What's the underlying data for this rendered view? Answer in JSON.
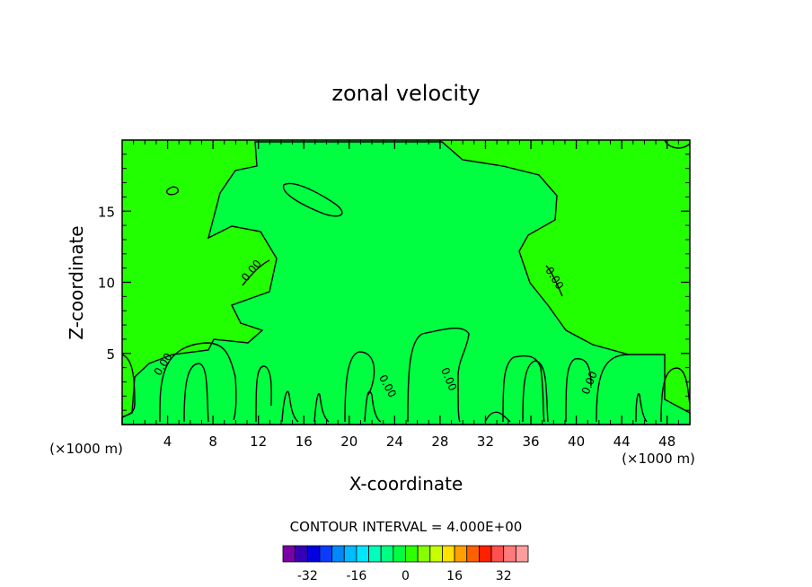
{
  "chart_data": {
    "type": "contour",
    "title": "zonal velocity",
    "xlabel": "X-coordinate",
    "ylabel": "Z-coordinate",
    "x_units": "(×1000 m)",
    "xlim": [
      0,
      50
    ],
    "ylim": [
      0,
      20
    ],
    "x_ticks": [
      4,
      8,
      12,
      16,
      20,
      24,
      28,
      32,
      36,
      40,
      44,
      48
    ],
    "y_ticks": [
      5,
      10,
      15
    ],
    "contour_label": "0.00",
    "contour_interval_text": "CONTOUR INTERVAL = 4.000E+00",
    "colorbar": {
      "tick_labels": [
        "-32",
        "-16",
        "0",
        "16",
        "32"
      ],
      "tick_values": [
        -32,
        -16,
        0,
        16,
        32
      ],
      "colors": [
        "#7a00a8",
        "#3500b8",
        "#0000e0",
        "#0a3cff",
        "#0088ff",
        "#00bbff",
        "#00e6ff",
        "#00ffbb",
        "#00ff80",
        "#00ff40",
        "#30ff00",
        "#88ff00",
        "#c8ff00",
        "#ffe000",
        "#ffa000",
        "#ff6000",
        "#ff2000",
        "#ff5050",
        "#ff7a7a",
        "#ff9c9c"
      ]
    },
    "fill_colors": {
      "region_positive": "#22ff00",
      "region_negative": "#00ff40"
    },
    "grid": false
  }
}
